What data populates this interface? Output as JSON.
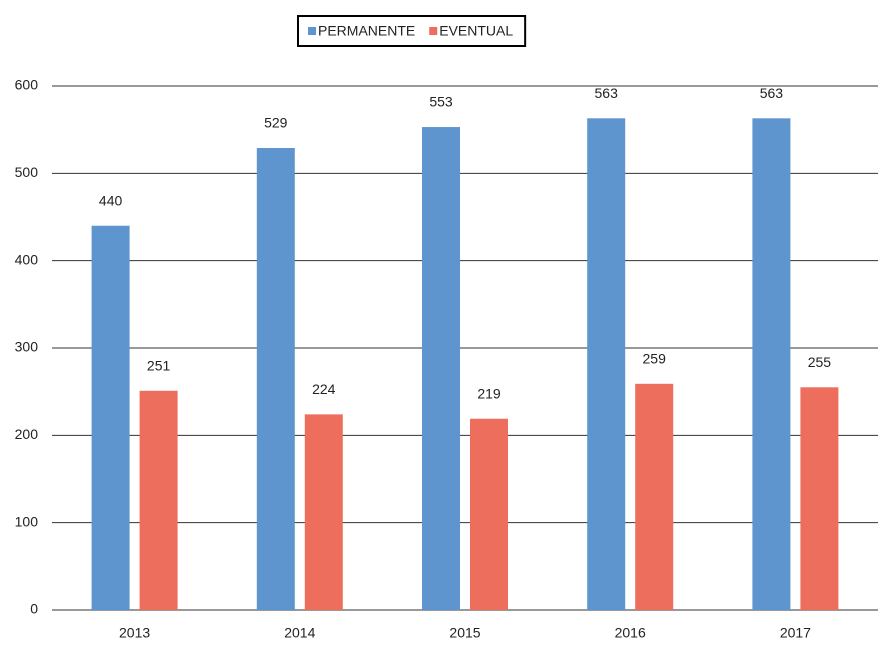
{
  "chart_data": {
    "type": "bar",
    "categories": [
      "2013",
      "2014",
      "2015",
      "2016",
      "2017"
    ],
    "series": [
      {
        "name": "PERMANENTE",
        "color": "#5f95cf",
        "values": [
          440,
          529,
          553,
          563,
          563
        ]
      },
      {
        "name": "EVENTUAL",
        "color": "#ee6e5e",
        "values": [
          251,
          224,
          219,
          259,
          255
        ]
      }
    ],
    "ylim": [
      0,
      600
    ],
    "yticks": [
      0,
      100,
      200,
      300,
      400,
      500,
      600
    ],
    "grid": true,
    "legend": "top"
  }
}
